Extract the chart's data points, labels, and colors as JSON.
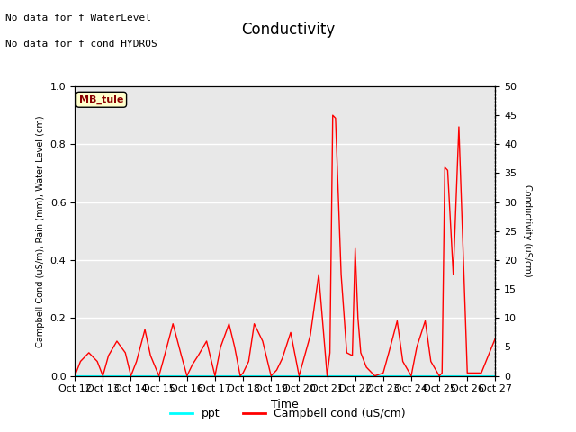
{
  "title": "Conductivity",
  "xlabel": "Time",
  "ylabel_left": "Campbell Cond (uS/m), Rain (mm), Water Level (cm)",
  "ylabel_right": "Conductivity (uS/cm)",
  "text_no_data1": "No data for f_WaterLevel",
  "text_no_data2": "No data for f_cond_HYDROS",
  "legend_box_label": "MB_tule",
  "ylim_left": [
    0,
    1.0
  ],
  "ylim_right": [
    0,
    50
  ],
  "plot_bg_color": "#e8e8e8",
  "ppt_color": "#00ffff",
  "cond_color": "red",
  "legend_ppt_label": "ppt",
  "legend_cond_label": "Campbell cond (uS/cm)",
  "x_values": [
    12,
    12.2,
    12.5,
    12.8,
    13.0,
    13.2,
    13.5,
    13.8,
    14.0,
    14.2,
    14.5,
    14.7,
    15.0,
    15.2,
    15.5,
    15.8,
    16.0,
    16.2,
    16.4,
    16.7,
    17.0,
    17.2,
    17.5,
    17.7,
    17.9,
    18.0,
    18.2,
    18.4,
    18.7,
    19.0,
    19.2,
    19.4,
    19.7,
    20.0,
    20.2,
    20.4,
    20.7,
    21.0,
    21.1,
    21.2,
    21.3,
    21.5,
    21.7,
    21.9,
    22.0,
    22.1,
    22.2,
    22.4,
    22.7,
    23.0,
    23.2,
    23.5,
    23.7,
    24.0,
    24.2,
    24.5,
    24.7,
    25.0,
    25.1,
    25.2,
    25.3,
    25.5,
    25.7,
    26.0,
    26.2,
    26.5,
    27.0
  ],
  "cond_values": [
    0,
    0.05,
    0.08,
    0.05,
    0.0,
    0.07,
    0.12,
    0.08,
    0.0,
    0.05,
    0.16,
    0.07,
    0.0,
    0.07,
    0.18,
    0.07,
    0.0,
    0.04,
    0.07,
    0.12,
    0.0,
    0.1,
    0.18,
    0.1,
    0.0,
    0.01,
    0.05,
    0.18,
    0.12,
    0.0,
    0.02,
    0.06,
    0.15,
    0.0,
    0.07,
    0.14,
    0.35,
    0.0,
    0.08,
    0.9,
    0.89,
    0.35,
    0.08,
    0.07,
    0.44,
    0.2,
    0.08,
    0.03,
    0.0,
    0.01,
    0.08,
    0.19,
    0.05,
    0.0,
    0.1,
    0.19,
    0.05,
    0.0,
    0.01,
    0.72,
    0.71,
    0.35,
    0.86,
    0.01,
    0.01,
    0.01,
    0.13
  ],
  "ppt_values": [
    0,
    0,
    0,
    0,
    0,
    0,
    0,
    0,
    0,
    0,
    0,
    0,
    0,
    0,
    0,
    0,
    0,
    0,
    0,
    0,
    0,
    0,
    0,
    0,
    0,
    0,
    0,
    0,
    0,
    0,
    0,
    0,
    0,
    0,
    0,
    0,
    0,
    0,
    0,
    0,
    0,
    0,
    0,
    0,
    0,
    0,
    0,
    0,
    0,
    0,
    0,
    0,
    0,
    0,
    0,
    0,
    0,
    0,
    0,
    0,
    0,
    0,
    0,
    0,
    0,
    0,
    0
  ]
}
